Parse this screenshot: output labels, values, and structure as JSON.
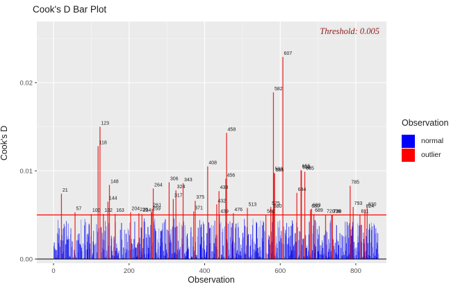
{
  "header": {
    "title": "Cook's D Bar Plot"
  },
  "chart_data": {
    "type": "bar",
    "title": "Cook's D Bar Plot",
    "xlabel": "Observation",
    "ylabel": "Cook's D",
    "annotation": "Threshold: 0.005",
    "annotation_color": "#8B1A1A",
    "x_tick_values": [
      0,
      200,
      400,
      600,
      800
    ],
    "x_tick_labels": [
      "0",
      "200",
      "400",
      "600",
      "800"
    ],
    "y_tick_values": [
      0,
      0.01,
      0.02
    ],
    "y_tick_labels": [
      "0.00",
      "0.01",
      "0.02"
    ],
    "xlim": [
      -44,
      881
    ],
    "ylim": [
      -0.0005,
      0.0269
    ],
    "grid": true,
    "threshold": 0.005,
    "threshold_color": "#FF0000",
    "zero_line_color": "#000000",
    "colors": {
      "normal": "#0000EE",
      "outlier": "#E60000",
      "panel": "#EBEBEB",
      "grid": "#FFFFFF",
      "tick_text": "#4D4D4D",
      "label_text": "#1A1A1A"
    },
    "legend": {
      "title": "Observation",
      "position": "right",
      "items": [
        {
          "label": "normal",
          "color": "#0000FF"
        },
        {
          "label": "outlier",
          "color": "#FF0000"
        }
      ]
    },
    "outliers": [
      {
        "obs": 21,
        "value": 0.0074
      },
      {
        "obs": 57,
        "value": 0.0053
      },
      {
        "obs": 100,
        "value": 0.0051
      },
      {
        "obs": 118,
        "value": 0.0128
      },
      {
        "obs": 123,
        "value": 0.015
      },
      {
        "obs": 132,
        "value": 0.0051
      },
      {
        "obs": 144,
        "value": 0.0065
      },
      {
        "obs": 148,
        "value": 0.0084
      },
      {
        "obs": 163,
        "value": 0.0051
      },
      {
        "obs": 204,
        "value": 0.0053
      },
      {
        "obs": 226,
        "value": 0.0052
      },
      {
        "obs": 234,
        "value": 0.0051
      },
      {
        "obs": 259,
        "value": 0.0053
      },
      {
        "obs": 261,
        "value": 0.0057
      },
      {
        "obs": 264,
        "value": 0.008
      },
      {
        "obs": 306,
        "value": 0.0087
      },
      {
        "obs": 317,
        "value": 0.0068
      },
      {
        "obs": 324,
        "value": 0.0078
      },
      {
        "obs": 343,
        "value": 0.0086
      },
      {
        "obs": 371,
        "value": 0.0054
      },
      {
        "obs": 375,
        "value": 0.0066
      },
      {
        "obs": 408,
        "value": 0.0105
      },
      {
        "obs": 432,
        "value": 0.0062
      },
      {
        "obs": 438,
        "value": 0.0077
      },
      {
        "obs": 439,
        "value": 0.005
      },
      {
        "obs": 456,
        "value": 0.0091
      },
      {
        "obs": 458,
        "value": 0.0143
      },
      {
        "obs": 476,
        "value": 0.0052
      },
      {
        "obs": 513,
        "value": 0.0058
      },
      {
        "obs": 562,
        "value": 0.005
      },
      {
        "obs": 575,
        "value": 0.0059
      },
      {
        "obs": 580,
        "value": 0.0056
      },
      {
        "obs": 582,
        "value": 0.0189
      },
      {
        "obs": 583,
        "value": 0.0098
      },
      {
        "obs": 585,
        "value": 0.0097
      },
      {
        "obs": 607,
        "value": 0.0229
      },
      {
        "obs": 644,
        "value": 0.0075
      },
      {
        "obs": 655,
        "value": 0.0101
      },
      {
        "obs": 656,
        "value": 0.01
      },
      {
        "obs": 665,
        "value": 0.0099
      },
      {
        "obs": 680,
        "value": 0.0056
      },
      {
        "obs": 683,
        "value": 0.0057
      },
      {
        "obs": 689,
        "value": 0.0051
      },
      {
        "obs": 720,
        "value": 0.005
      },
      {
        "obs": 736,
        "value": 0.005
      },
      {
        "obs": 738,
        "value": 0.005
      },
      {
        "obs": 785,
        "value": 0.0083
      },
      {
        "obs": 793,
        "value": 0.0059
      },
      {
        "obs": 811,
        "value": 0.005
      },
      {
        "obs": 824,
        "value": 0.0056
      },
      {
        "obs": 830,
        "value": 0.0058
      }
    ],
    "normal_bars": {
      "count": 860,
      "max_value": 0.0046,
      "seed": 11
    }
  }
}
